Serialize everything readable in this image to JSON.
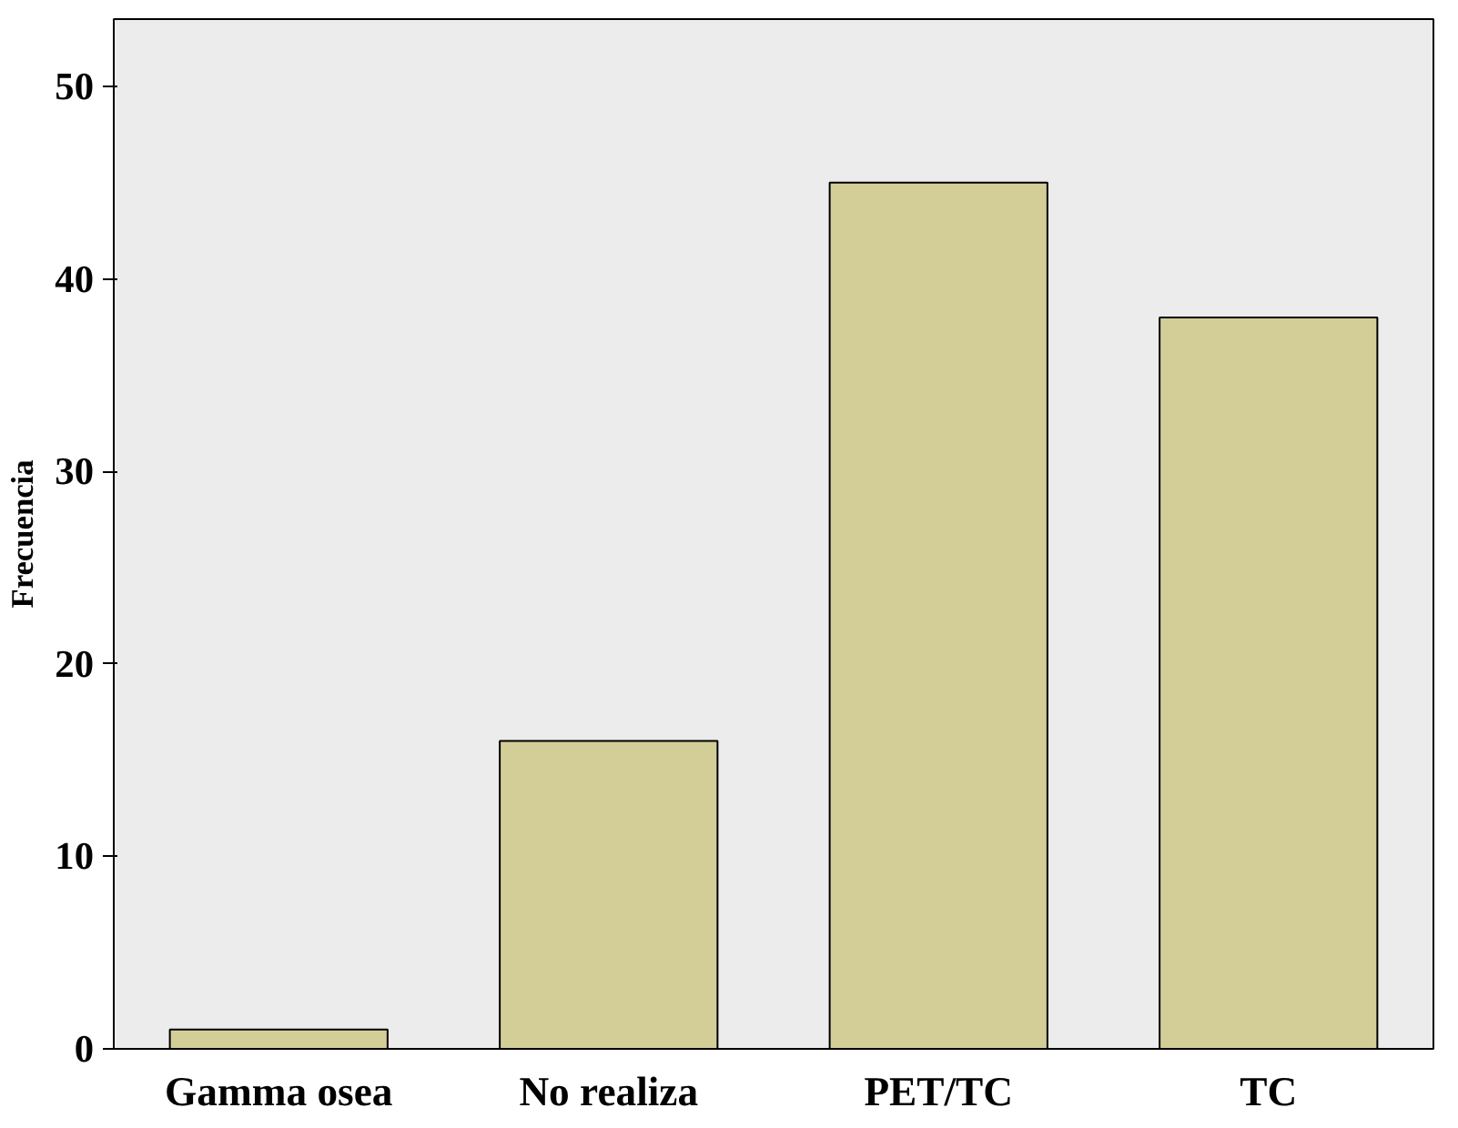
{
  "chart_data": {
    "type": "bar",
    "ylabel": "Frecuencia",
    "categories": [
      "Gamma osea",
      "No realiza",
      "PET/TC",
      "TC"
    ],
    "values": [
      1,
      16,
      45,
      38
    ],
    "color": "#d3ce98",
    "ylim": [
      0,
      53.5
    ],
    "yticks": [
      0,
      10,
      20,
      30,
      40,
      50
    ],
    "grid": false
  }
}
